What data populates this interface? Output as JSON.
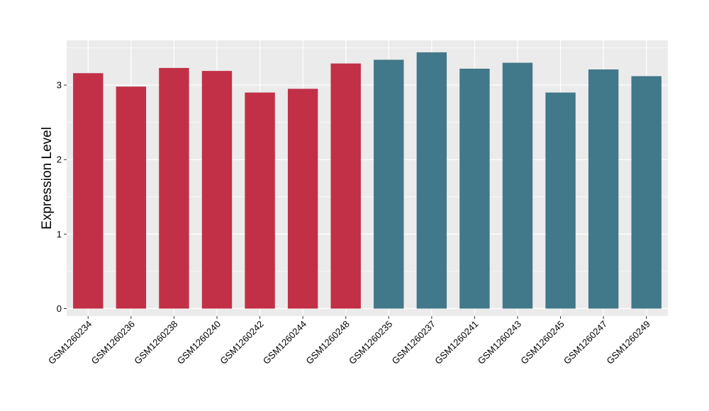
{
  "chart_data": {
    "type": "bar",
    "title": "",
    "xlabel": "",
    "ylabel": "Expression Level",
    "ylim": [
      -0.1,
      3.6
    ],
    "yticks": [
      0,
      1,
      2,
      3
    ],
    "grid": true,
    "legend": "none",
    "background_color": "#ebebeb",
    "grid_color": "#ffffff",
    "categories": [
      "GSM1260234",
      "GSM1260236",
      "GSM1260238",
      "GSM1260240",
      "GSM1260242",
      "GSM1260244",
      "GSM1260248",
      "GSM1260235",
      "GSM1260237",
      "GSM1260241",
      "GSM1260243",
      "GSM1260245",
      "GSM1260247",
      "GSM1260249"
    ],
    "values": [
      3.16,
      2.98,
      3.23,
      3.19,
      2.9,
      2.95,
      3.29,
      3.34,
      3.44,
      3.22,
      3.3,
      2.9,
      3.21,
      3.12
    ],
    "bar_colors": [
      "#c13047",
      "#c13047",
      "#c13047",
      "#c13047",
      "#c13047",
      "#c13047",
      "#c13047",
      "#41788a",
      "#41788a",
      "#41788a",
      "#41788a",
      "#41788a",
      "#41788a",
      "#41788a"
    ]
  }
}
